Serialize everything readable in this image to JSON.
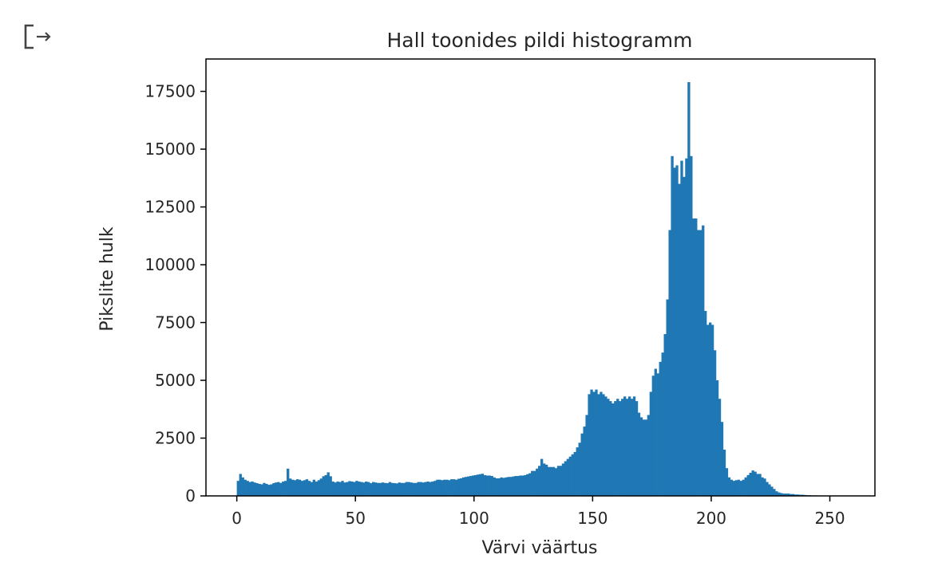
{
  "output_icon": "output-arrow-icon",
  "chart_data": {
    "type": "bar",
    "title": "Hall toonides pildi histogramm",
    "xlabel": "Värvi väärtus",
    "ylabel": "Pikslite hulk",
    "xlim": [
      -13,
      269
    ],
    "ylim": [
      0,
      18900
    ],
    "xticks": [
      0,
      50,
      100,
      150,
      200,
      250
    ],
    "yticks": [
      0,
      2500,
      5000,
      7500,
      10000,
      12500,
      15000,
      17500
    ],
    "bar_color": "#1f77b4",
    "bin_start": 0,
    "bin_width": 1,
    "values": [
      650,
      950,
      800,
      700,
      650,
      600,
      620,
      580,
      550,
      520,
      500,
      560,
      520,
      480,
      500,
      550,
      580,
      600,
      560,
      620,
      650,
      1180,
      750,
      700,
      680,
      720,
      700,
      650,
      680,
      720,
      650,
      600,
      700,
      620,
      680,
      750,
      850,
      900,
      1020,
      850,
      620,
      580,
      620,
      600,
      650,
      580,
      600,
      640,
      620,
      600,
      650,
      620,
      600,
      580,
      620,
      600,
      550,
      600,
      580,
      560,
      560,
      580,
      560,
      550,
      600,
      560,
      550,
      540,
      580,
      560,
      560,
      600,
      600,
      580,
      560,
      560,
      600,
      600,
      580,
      600,
      620,
      600,
      620,
      650,
      700,
      700,
      680,
      700,
      700,
      680,
      720,
      720,
      700,
      740,
      760,
      800,
      820,
      840,
      860,
      880,
      900,
      920,
      940,
      960,
      900,
      880,
      880,
      860,
      800,
      760,
      760,
      800,
      780,
      800,
      820,
      820,
      840,
      860,
      860,
      880,
      880,
      900,
      940,
      980,
      1080,
      1080,
      1180,
      1300,
      1600,
      1400,
      1350,
      1250,
      1250,
      1250,
      1200,
      1300,
      1300,
      1400,
      1500,
      1600,
      1700,
      1800,
      1900,
      2100,
      2300,
      2700,
      3000,
      3500,
      4400,
      4600,
      4500,
      4600,
      4400,
      4500,
      4400,
      4300,
      4200,
      4100,
      4000,
      4100,
      4200,
      4100,
      4200,
      4300,
      4200,
      4300,
      4200,
      4300,
      4100,
      3600,
      3400,
      3300,
      3300,
      3500,
      4500,
      5200,
      5500,
      5300,
      5800,
      6200,
      7000,
      8500,
      11500,
      14700,
      14200,
      14300,
      13500,
      14500,
      13800,
      14600,
      17900,
      14700,
      12000,
      12000,
      11500,
      11500,
      11700,
      8000,
      7400,
      7500,
      7400,
      6300,
      5000,
      4200,
      3200,
      2000,
      1200,
      800,
      700,
      650,
      680,
      700,
      650,
      700,
      800,
      900,
      1000,
      1100,
      1050,
      950,
      950,
      800,
      750,
      600,
      500,
      400,
      300,
      200,
      150,
      120,
      100,
      100,
      100,
      80,
      80,
      60,
      60,
      50,
      50,
      40,
      30,
      30,
      20,
      20,
      20,
      10,
      10,
      10,
      0,
      0,
      0,
      0,
      0,
      0,
      0,
      0,
      0,
      0,
      0,
      0,
      0,
      0,
      0
    ]
  }
}
